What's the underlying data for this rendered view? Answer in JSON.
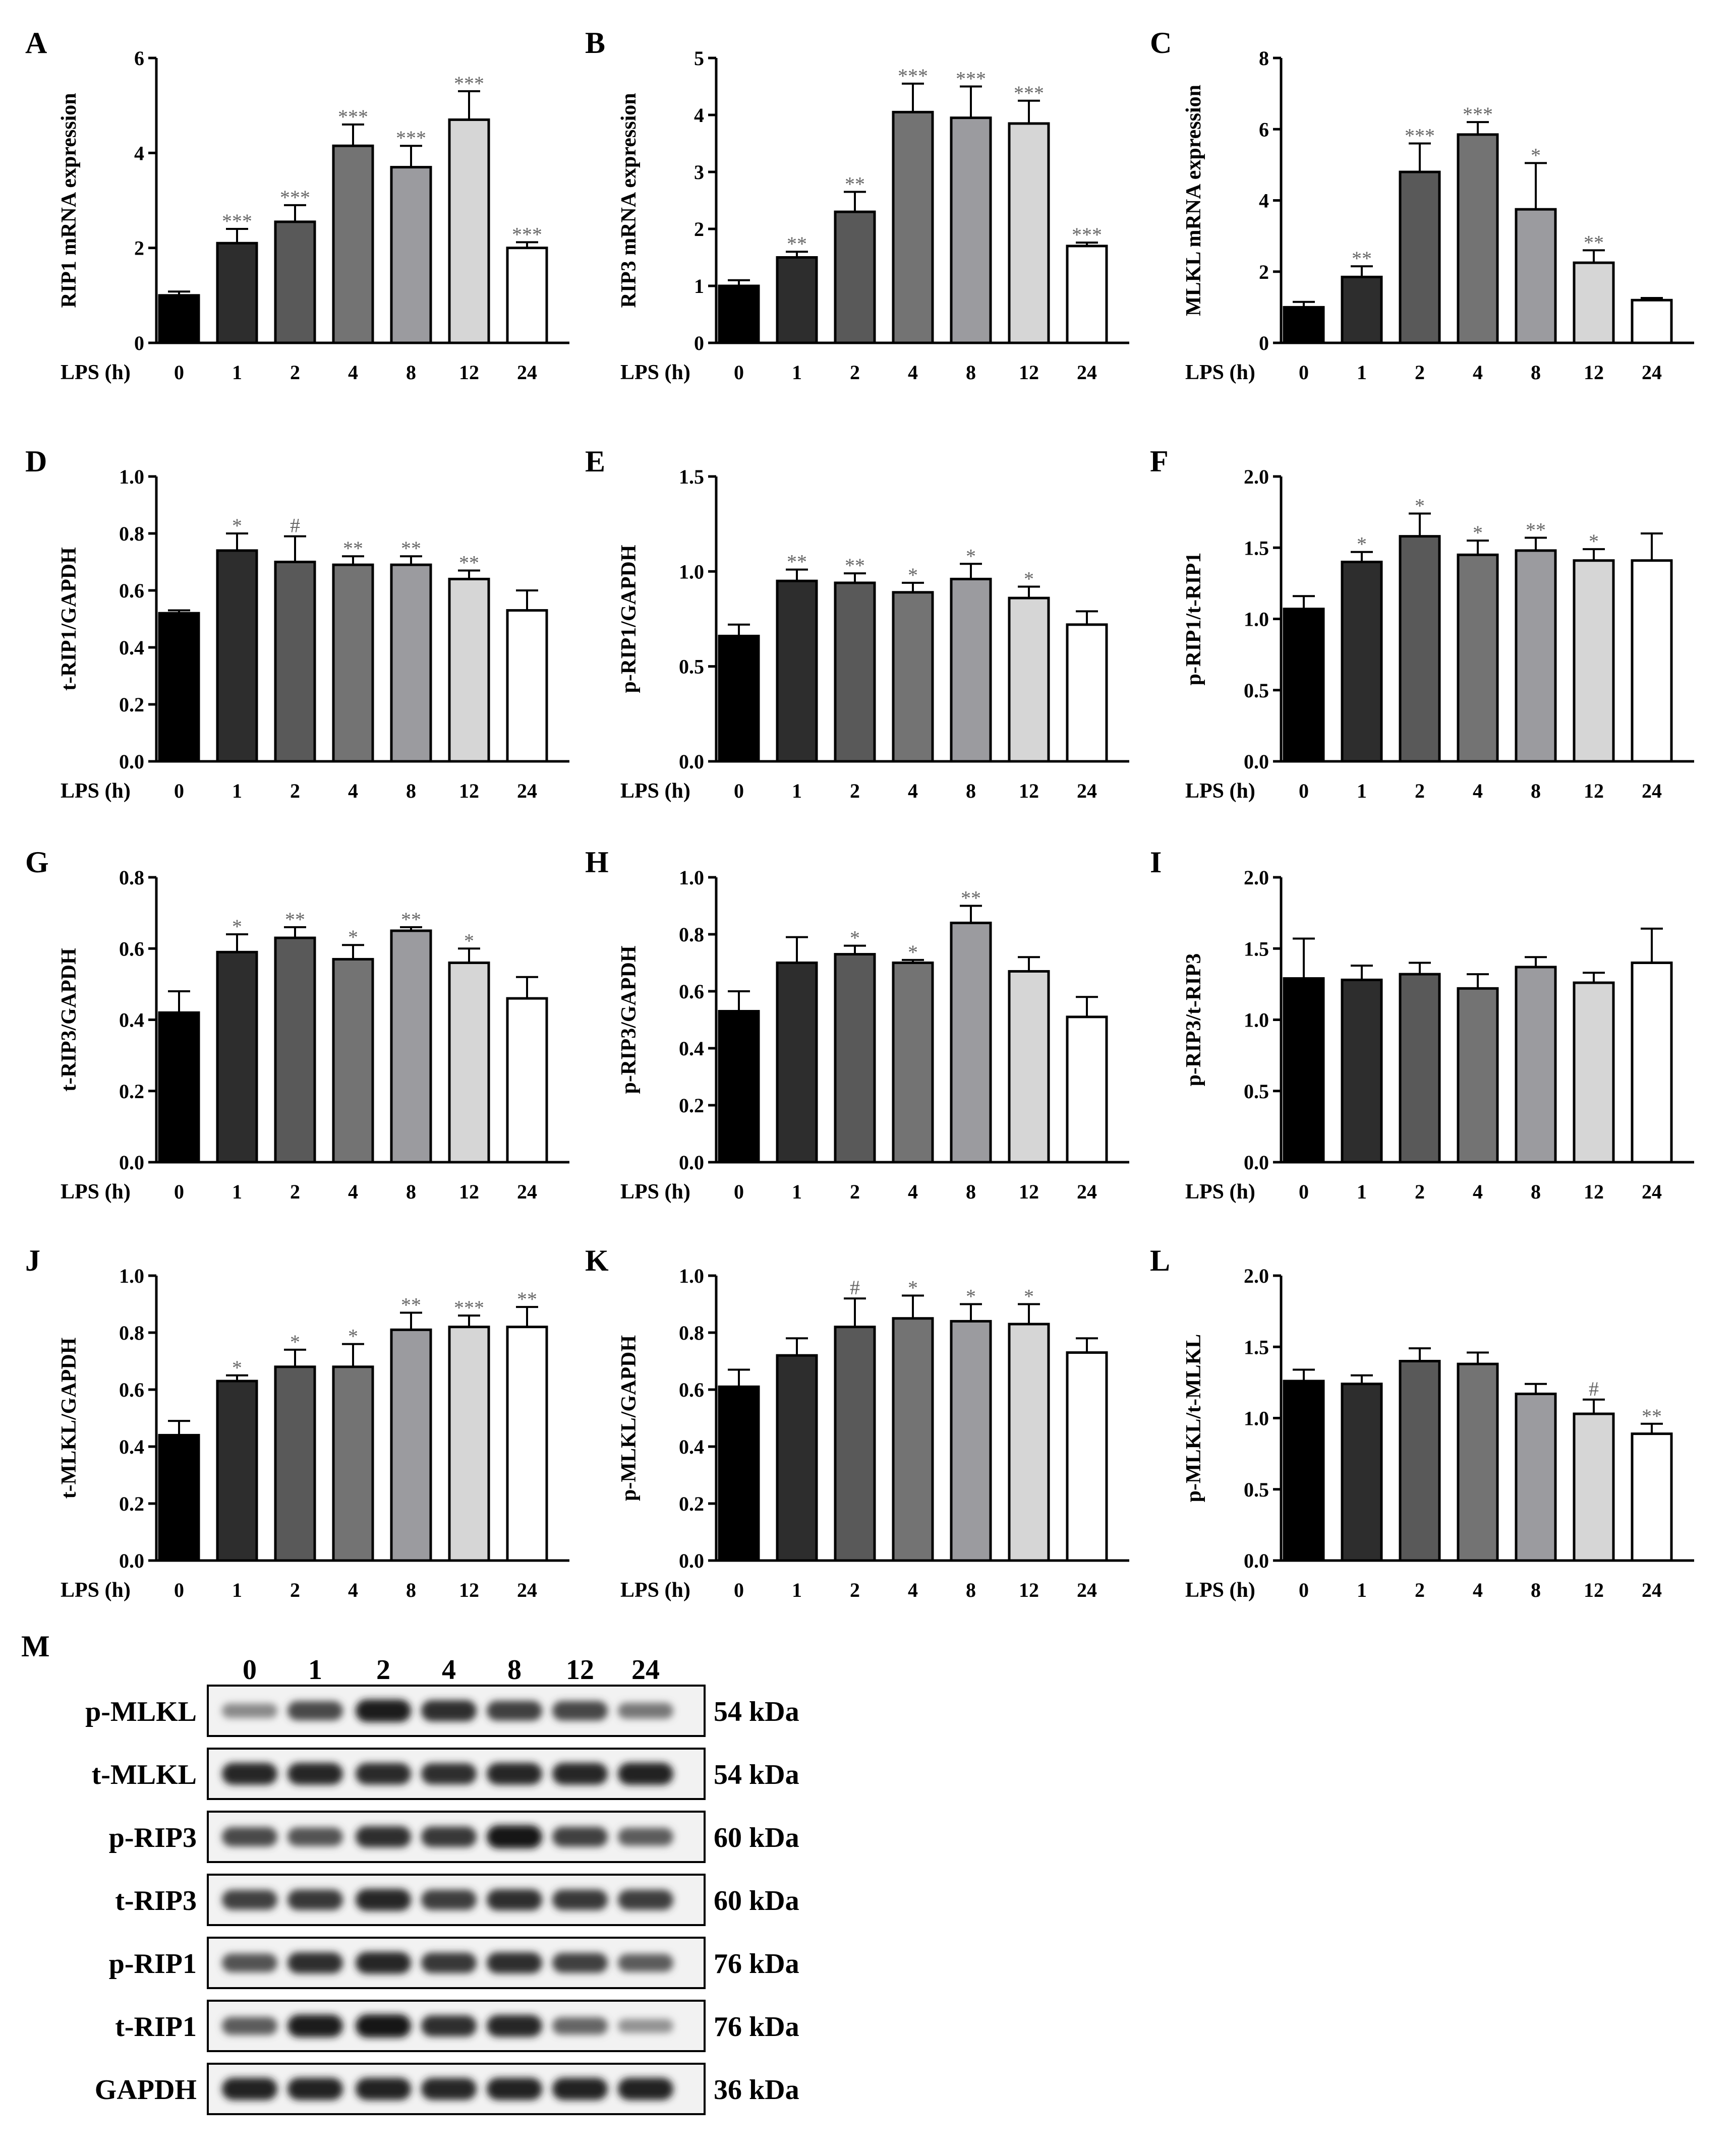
{
  "palette": [
    "#000000",
    "#2d2d2d",
    "#595959",
    "#737373",
    "#9b9b9f",
    "#d6d6d6",
    "#ffffff"
  ],
  "chart_data": [
    {
      "type": "bar",
      "panel": "A",
      "ylabel": "RIP1 mRNA expression",
      "xname": "LPS (h)",
      "categories": [
        "0",
        "1",
        "2",
        "4",
        "8",
        "12",
        "24"
      ],
      "values": [
        1.0,
        2.1,
        2.55,
        4.15,
        3.7,
        4.7,
        2.0
      ],
      "errors": [
        0.08,
        0.3,
        0.35,
        0.45,
        0.45,
        0.6,
        0.12
      ],
      "sig": [
        "",
        "***",
        "***",
        "***",
        "***",
        "***",
        "***"
      ],
      "ylim": [
        0,
        6
      ],
      "yticks": [
        0,
        2,
        4,
        6
      ]
    },
    {
      "type": "bar",
      "panel": "B",
      "ylabel": "RIP3 mRNA expression",
      "xname": "LPS (h)",
      "categories": [
        "0",
        "1",
        "2",
        "4",
        "8",
        "12",
        "24"
      ],
      "values": [
        1.0,
        1.5,
        2.3,
        4.05,
        3.95,
        3.85,
        1.7
      ],
      "errors": [
        0.1,
        0.1,
        0.35,
        0.5,
        0.55,
        0.4,
        0.06
      ],
      "sig": [
        "",
        "**",
        "**",
        "***",
        "***",
        "***",
        "***"
      ],
      "ylim": [
        0,
        5
      ],
      "yticks": [
        0,
        1,
        2,
        3,
        4,
        5
      ]
    },
    {
      "type": "bar",
      "panel": "C",
      "ylabel": "MLKL mRNA expression",
      "xname": "LPS (h)",
      "categories": [
        "0",
        "1",
        "2",
        "4",
        "8",
        "12",
        "24"
      ],
      "values": [
        1.0,
        1.85,
        4.8,
        5.85,
        3.75,
        2.25,
        1.2
      ],
      "errors": [
        0.15,
        0.3,
        0.8,
        0.35,
        1.3,
        0.35,
        0.06
      ],
      "sig": [
        "",
        "**",
        "***",
        "***",
        "*",
        "**",
        ""
      ],
      "ylim": [
        0,
        8
      ],
      "yticks": [
        0,
        2,
        4,
        6,
        8
      ]
    },
    {
      "type": "bar",
      "panel": "D",
      "ylabel": "t-RIP1/GAPDH",
      "xname": "LPS (h)",
      "categories": [
        "0",
        "1",
        "2",
        "4",
        "8",
        "12",
        "24"
      ],
      "values": [
        0.52,
        0.74,
        0.7,
        0.69,
        0.69,
        0.64,
        0.53
      ],
      "errors": [
        0.01,
        0.06,
        0.09,
        0.03,
        0.03,
        0.03,
        0.07
      ],
      "sig": [
        "",
        "*",
        "#",
        "**",
        "**",
        "**",
        ""
      ],
      "ylim": [
        0,
        1.0
      ],
      "yticks": [
        0.0,
        0.2,
        0.4,
        0.6,
        0.8,
        1.0
      ]
    },
    {
      "type": "bar",
      "panel": "E",
      "ylabel": "p-RIP1/GAPDH",
      "xname": "LPS (h)",
      "categories": [
        "0",
        "1",
        "2",
        "4",
        "8",
        "12",
        "24"
      ],
      "values": [
        0.66,
        0.95,
        0.94,
        0.89,
        0.96,
        0.86,
        0.72
      ],
      "errors": [
        0.06,
        0.06,
        0.05,
        0.05,
        0.08,
        0.06,
        0.07
      ],
      "sig": [
        "",
        "**",
        "**",
        "*",
        "*",
        "*",
        ""
      ],
      "ylim": [
        0,
        1.5
      ],
      "yticks": [
        0.0,
        0.5,
        1.0,
        1.5
      ]
    },
    {
      "type": "bar",
      "panel": "F",
      "ylabel": "p-RIP1/t-RIP1",
      "xname": "LPS (h)",
      "categories": [
        "0",
        "1",
        "2",
        "4",
        "8",
        "12",
        "24"
      ],
      "values": [
        1.07,
        1.4,
        1.58,
        1.45,
        1.48,
        1.41,
        1.41
      ],
      "errors": [
        0.09,
        0.07,
        0.16,
        0.1,
        0.09,
        0.08,
        0.19
      ],
      "sig": [
        "",
        "*",
        "*",
        "*",
        "**",
        "*",
        ""
      ],
      "ylim": [
        0,
        2.0
      ],
      "yticks": [
        0.0,
        0.5,
        1.0,
        1.5,
        2.0
      ]
    },
    {
      "type": "bar",
      "panel": "G",
      "ylabel": "t-RIP3/GAPDH",
      "xname": "LPS (h)",
      "categories": [
        "0",
        "1",
        "2",
        "4",
        "8",
        "12",
        "24"
      ],
      "values": [
        0.42,
        0.59,
        0.63,
        0.57,
        0.65,
        0.56,
        0.46
      ],
      "errors": [
        0.06,
        0.05,
        0.03,
        0.04,
        0.01,
        0.04,
        0.06
      ],
      "sig": [
        "",
        "*",
        "**",
        "*",
        "**",
        "*",
        ""
      ],
      "ylim": [
        0,
        0.8
      ],
      "yticks": [
        0.0,
        0.2,
        0.4,
        0.6,
        0.8
      ]
    },
    {
      "type": "bar",
      "panel": "H",
      "ylabel": "p-RIP3/GAPDH",
      "xname": "LPS (h)",
      "categories": [
        "0",
        "1",
        "2",
        "4",
        "8",
        "12",
        "24"
      ],
      "values": [
        0.53,
        0.7,
        0.73,
        0.7,
        0.84,
        0.67,
        0.51
      ],
      "errors": [
        0.07,
        0.09,
        0.03,
        0.01,
        0.06,
        0.05,
        0.07
      ],
      "sig": [
        "",
        "",
        "*",
        "*",
        "**",
        "",
        ""
      ],
      "ylim": [
        0,
        1.0
      ],
      "yticks": [
        0.0,
        0.2,
        0.4,
        0.6,
        0.8,
        1.0
      ]
    },
    {
      "type": "bar",
      "panel": "I",
      "ylabel": "p-RIP3/t-RIP3",
      "xname": "LPS (h)",
      "categories": [
        "0",
        "1",
        "2",
        "4",
        "8",
        "12",
        "24"
      ],
      "values": [
        1.29,
        1.28,
        1.32,
        1.22,
        1.37,
        1.26,
        1.4
      ],
      "errors": [
        0.28,
        0.1,
        0.08,
        0.1,
        0.07,
        0.07,
        0.24
      ],
      "sig": [
        "",
        "",
        "",
        "",
        "",
        "",
        ""
      ],
      "ylim": [
        0,
        2.0
      ],
      "yticks": [
        0.0,
        0.5,
        1.0,
        1.5,
        2.0
      ]
    },
    {
      "type": "bar",
      "panel": "J",
      "ylabel": "t-MLKL/GAPDH",
      "xname": "LPS (h)",
      "categories": [
        "0",
        "1",
        "2",
        "4",
        "8",
        "12",
        "24"
      ],
      "values": [
        0.44,
        0.63,
        0.68,
        0.68,
        0.81,
        0.82,
        0.82
      ],
      "errors": [
        0.05,
        0.02,
        0.06,
        0.08,
        0.06,
        0.04,
        0.07
      ],
      "sig": [
        "",
        "*",
        "*",
        "*",
        "**",
        "***",
        "**"
      ],
      "ylim": [
        0,
        1.0
      ],
      "yticks": [
        0.0,
        0.2,
        0.4,
        0.6,
        0.8,
        1.0
      ]
    },
    {
      "type": "bar",
      "panel": "K",
      "ylabel": "p-MLKL/GAPDH",
      "xname": "LPS (h)",
      "categories": [
        "0",
        "1",
        "2",
        "4",
        "8",
        "12",
        "24"
      ],
      "values": [
        0.61,
        0.72,
        0.82,
        0.85,
        0.84,
        0.83,
        0.73
      ],
      "errors": [
        0.06,
        0.06,
        0.1,
        0.08,
        0.06,
        0.07,
        0.05
      ],
      "sig": [
        "",
        "",
        "#",
        "*",
        "*",
        "*",
        ""
      ],
      "ylim": [
        0,
        1.0
      ],
      "yticks": [
        0.0,
        0.2,
        0.4,
        0.6,
        0.8,
        1.0
      ]
    },
    {
      "type": "bar",
      "panel": "L",
      "ylabel": "p-MLKL/t-MLKL",
      "xname": "LPS (h)",
      "categories": [
        "0",
        "1",
        "2",
        "4",
        "8",
        "12",
        "24"
      ],
      "values": [
        1.26,
        1.24,
        1.4,
        1.38,
        1.17,
        1.03,
        0.89
      ],
      "errors": [
        0.08,
        0.06,
        0.09,
        0.08,
        0.07,
        0.1,
        0.07
      ],
      "sig": [
        "",
        "",
        "",
        "",
        "",
        "#",
        "**"
      ],
      "ylim": [
        0,
        2.0
      ],
      "yticks": [
        0.0,
        0.5,
        1.0,
        1.5,
        2.0
      ]
    }
  ],
  "blot": {
    "panel": "M",
    "lanes": [
      "0",
      "1",
      "2",
      "4",
      "8",
      "12",
      "24"
    ],
    "rows": [
      {
        "label": "p-MLKL",
        "kda": "54 kDa",
        "intensity": [
          0.35,
          0.7,
          0.95,
          0.85,
          0.75,
          0.72,
          0.45
        ]
      },
      {
        "label": "t-MLKL",
        "kda": "54 kDa",
        "intensity": [
          0.9,
          0.9,
          0.88,
          0.85,
          0.9,
          0.9,
          0.92
        ]
      },
      {
        "label": "p-RIP3",
        "kda": "60 kDa",
        "intensity": [
          0.7,
          0.65,
          0.85,
          0.8,
          1.0,
          0.75,
          0.6
        ]
      },
      {
        "label": "t-RIP3",
        "kda": "60 kDa",
        "intensity": [
          0.75,
          0.8,
          0.9,
          0.78,
          0.85,
          0.8,
          0.78
        ]
      },
      {
        "label": "p-RIP1",
        "kda": "76 kDa",
        "intensity": [
          0.65,
          0.85,
          0.9,
          0.8,
          0.85,
          0.75,
          0.6
        ]
      },
      {
        "label": "t-RIP1",
        "kda": "76 kDa",
        "intensity": [
          0.6,
          0.95,
          1.0,
          0.85,
          0.9,
          0.55,
          0.3
        ]
      },
      {
        "label": "GAPDH",
        "kda": "36 kDa",
        "intensity": [
          0.92,
          0.92,
          0.92,
          0.9,
          0.92,
          0.92,
          0.92
        ]
      }
    ]
  }
}
